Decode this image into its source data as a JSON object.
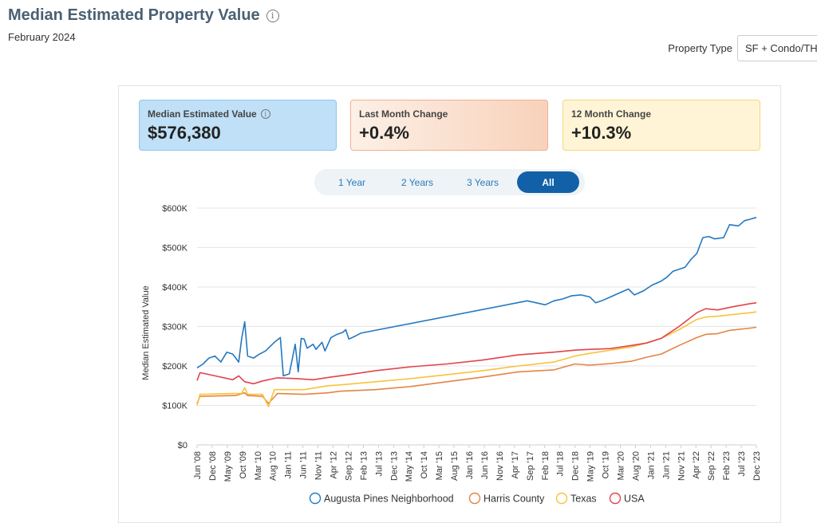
{
  "header": {
    "title": "Median Estimated Property Value",
    "subtitle": "February 2024"
  },
  "property_type": {
    "label": "Property Type",
    "value": "SF + Condo/TH"
  },
  "cards": [
    {
      "label": "Median Estimated Value",
      "value": "$576,380"
    },
    {
      "label": "Last Month Change",
      "value": "+0.4%"
    },
    {
      "label": "12 Month Change",
      "value": "+10.3%"
    }
  ],
  "range_toggle": {
    "options": [
      "1 Year",
      "2 Years",
      "3 Years",
      "All"
    ],
    "selected": "All"
  },
  "colors": {
    "blue": "#2478c0",
    "orange": "#e48445",
    "yellow": "#f8c33b",
    "red": "#e2434b"
  },
  "chart_data": {
    "type": "line",
    "title": "",
    "xlabel": "",
    "ylabel": "Median Estimated Value",
    "x_tick_labels": [
      "Jun '08",
      "Dec '08",
      "May '09",
      "Oct '09",
      "Mar '10",
      "Aug '10",
      "Jan '11",
      "Jun '11",
      "Nov '11",
      "Apr '12",
      "Sep '12",
      "Feb '13",
      "Jul '13",
      "Dec '13",
      "May '14",
      "Oct '14",
      "Mar '15",
      "Aug '15",
      "Jan '16",
      "Jun '16",
      "Nov '16",
      "Apr '17",
      "Sep '17",
      "Feb '18",
      "Jul '18",
      "Dec '18",
      "May '19",
      "Oct '19",
      "Mar '20",
      "Aug '20",
      "Jan '21",
      "Jun '21",
      "Nov '21",
      "Apr '22",
      "Sep '22",
      "Feb '23",
      "Jul '23",
      "Dec '23"
    ],
    "y_tick_labels": [
      "$0",
      "$100K",
      "$200K",
      "$300K",
      "$400K",
      "$500K",
      "$600K"
    ],
    "ylim": [
      0,
      600000
    ],
    "x_range": [
      "2008-06",
      "2024-02"
    ],
    "grid": "horizontal",
    "legend": "bottom",
    "series": [
      {
        "name": "Augusta Pines Neighborhood",
        "color_key": "blue",
        "points": [
          [
            "2008-06",
            195000
          ],
          [
            "2008-08",
            205000
          ],
          [
            "2008-10",
            220000
          ],
          [
            "2008-12",
            225000
          ],
          [
            "2009-02",
            210000
          ],
          [
            "2009-04",
            235000
          ],
          [
            "2009-06",
            230000
          ],
          [
            "2009-08",
            210000
          ],
          [
            "2009-09",
            270000
          ],
          [
            "2009-10",
            312000
          ],
          [
            "2009-11",
            225000
          ],
          [
            "2010-01",
            220000
          ],
          [
            "2010-03",
            230000
          ],
          [
            "2010-05",
            238000
          ],
          [
            "2010-08",
            260000
          ],
          [
            "2010-10",
            272000
          ],
          [
            "2010-11",
            175000
          ],
          [
            "2011-01",
            180000
          ],
          [
            "2011-03",
            255000
          ],
          [
            "2011-04",
            185000
          ],
          [
            "2011-05",
            270000
          ],
          [
            "2011-06",
            268000
          ],
          [
            "2011-07",
            245000
          ],
          [
            "2011-09",
            255000
          ],
          [
            "2011-10",
            242000
          ],
          [
            "2011-12",
            260000
          ],
          [
            "2012-01",
            238000
          ],
          [
            "2012-03",
            272000
          ],
          [
            "2012-05",
            280000
          ],
          [
            "2012-07",
            285000
          ],
          [
            "2012-08",
            292000
          ],
          [
            "2012-09",
            268000
          ],
          [
            "2012-11",
            275000
          ],
          [
            "2013-01",
            283000
          ],
          [
            "2017-09",
            365000
          ],
          [
            "2017-12",
            360000
          ],
          [
            "2018-03",
            355000
          ],
          [
            "2018-06",
            365000
          ],
          [
            "2018-09",
            370000
          ],
          [
            "2018-12",
            378000
          ],
          [
            "2019-03",
            380000
          ],
          [
            "2019-06",
            375000
          ],
          [
            "2019-08",
            360000
          ],
          [
            "2019-10",
            365000
          ],
          [
            "2020-01",
            375000
          ],
          [
            "2020-04",
            385000
          ],
          [
            "2020-07",
            395000
          ],
          [
            "2020-09",
            380000
          ],
          [
            "2020-12",
            390000
          ],
          [
            "2021-03",
            405000
          ],
          [
            "2021-06",
            415000
          ],
          [
            "2021-08",
            425000
          ],
          [
            "2021-10",
            440000
          ],
          [
            "2021-12",
            445000
          ],
          [
            "2022-02",
            450000
          ],
          [
            "2022-04",
            470000
          ],
          [
            "2022-06",
            485000
          ],
          [
            "2022-08",
            525000
          ],
          [
            "2022-10",
            528000
          ],
          [
            "2022-12",
            522000
          ],
          [
            "2023-03",
            525000
          ],
          [
            "2023-05",
            558000
          ],
          [
            "2023-08",
            555000
          ],
          [
            "2023-10",
            568000
          ],
          [
            "2023-12",
            572000
          ],
          [
            "2024-02",
            576380
          ]
        ]
      },
      {
        "name": "Harris County",
        "color_key": "orange",
        "points": [
          [
            "2008-06",
            105000
          ],
          [
            "2008-07",
            123000
          ],
          [
            "2009-01",
            124000
          ],
          [
            "2009-07",
            125000
          ],
          [
            "2009-10",
            132000
          ],
          [
            "2009-11",
            125000
          ],
          [
            "2010-04",
            123000
          ],
          [
            "2010-06",
            105000
          ],
          [
            "2010-09",
            130000
          ],
          [
            "2011-06",
            128000
          ],
          [
            "2012-02",
            132000
          ],
          [
            "2012-06",
            136000
          ],
          [
            "2013-06",
            140000
          ],
          [
            "2014-06",
            148000
          ],
          [
            "2015-06",
            160000
          ],
          [
            "2016-06",
            172000
          ],
          [
            "2017-06",
            185000
          ],
          [
            "2018-06",
            190000
          ],
          [
            "2019-01",
            205000
          ],
          [
            "2019-06",
            202000
          ],
          [
            "2020-01",
            206000
          ],
          [
            "2020-08",
            212000
          ],
          [
            "2021-01",
            222000
          ],
          [
            "2021-06",
            230000
          ],
          [
            "2021-12",
            252000
          ],
          [
            "2022-06",
            272000
          ],
          [
            "2022-09",
            280000
          ],
          [
            "2023-01",
            282000
          ],
          [
            "2023-05",
            290000
          ],
          [
            "2023-12",
            296000
          ],
          [
            "2024-02",
            298000
          ]
        ]
      },
      {
        "name": "Texas",
        "color_key": "yellow",
        "points": [
          [
            "2008-06",
            100000
          ],
          [
            "2008-07",
            128000
          ],
          [
            "2009-06",
            130000
          ],
          [
            "2009-09",
            130000
          ],
          [
            "2009-10",
            145000
          ],
          [
            "2009-11",
            128000
          ],
          [
            "2010-04",
            128000
          ],
          [
            "2010-06",
            97000
          ],
          [
            "2010-08",
            140000
          ],
          [
            "2011-06",
            140000
          ],
          [
            "2012-02",
            150000
          ],
          [
            "2012-06",
            152000
          ],
          [
            "2013-06",
            160000
          ],
          [
            "2014-06",
            168000
          ],
          [
            "2015-06",
            178000
          ],
          [
            "2016-06",
            188000
          ],
          [
            "2017-06",
            200000
          ],
          [
            "2018-06",
            210000
          ],
          [
            "2019-01",
            225000
          ],
          [
            "2019-06",
            232000
          ],
          [
            "2020-01",
            240000
          ],
          [
            "2020-08",
            248000
          ],
          [
            "2021-01",
            258000
          ],
          [
            "2021-06",
            270000
          ],
          [
            "2021-12",
            292000
          ],
          [
            "2022-06",
            318000
          ],
          [
            "2022-09",
            324000
          ],
          [
            "2023-01",
            326000
          ],
          [
            "2023-06",
            330000
          ],
          [
            "2023-12",
            335000
          ],
          [
            "2024-02",
            337000
          ]
        ]
      },
      {
        "name": "USA",
        "color_key": "red",
        "points": [
          [
            "2008-06",
            163000
          ],
          [
            "2008-07",
            183000
          ],
          [
            "2008-12",
            175000
          ],
          [
            "2009-06",
            165000
          ],
          [
            "2009-08",
            175000
          ],
          [
            "2009-10",
            160000
          ],
          [
            "2010-01",
            155000
          ],
          [
            "2010-04",
            162000
          ],
          [
            "2010-09",
            170000
          ],
          [
            "2011-03",
            168000
          ],
          [
            "2011-09",
            165000
          ],
          [
            "2012-03",
            172000
          ],
          [
            "2012-09",
            178000
          ],
          [
            "2013-06",
            188000
          ],
          [
            "2014-06",
            198000
          ],
          [
            "2015-06",
            205000
          ],
          [
            "2016-06",
            215000
          ],
          [
            "2017-06",
            228000
          ],
          [
            "2018-06",
            235000
          ],
          [
            "2019-01",
            240000
          ],
          [
            "2019-06",
            242000
          ],
          [
            "2020-01",
            244000
          ],
          [
            "2020-08",
            252000
          ],
          [
            "2021-01",
            258000
          ],
          [
            "2021-06",
            270000
          ],
          [
            "2021-12",
            300000
          ],
          [
            "2022-06",
            335000
          ],
          [
            "2022-09",
            345000
          ],
          [
            "2023-01",
            342000
          ],
          [
            "2023-06",
            350000
          ],
          [
            "2023-12",
            358000
          ],
          [
            "2024-02",
            360000
          ]
        ]
      }
    ]
  }
}
